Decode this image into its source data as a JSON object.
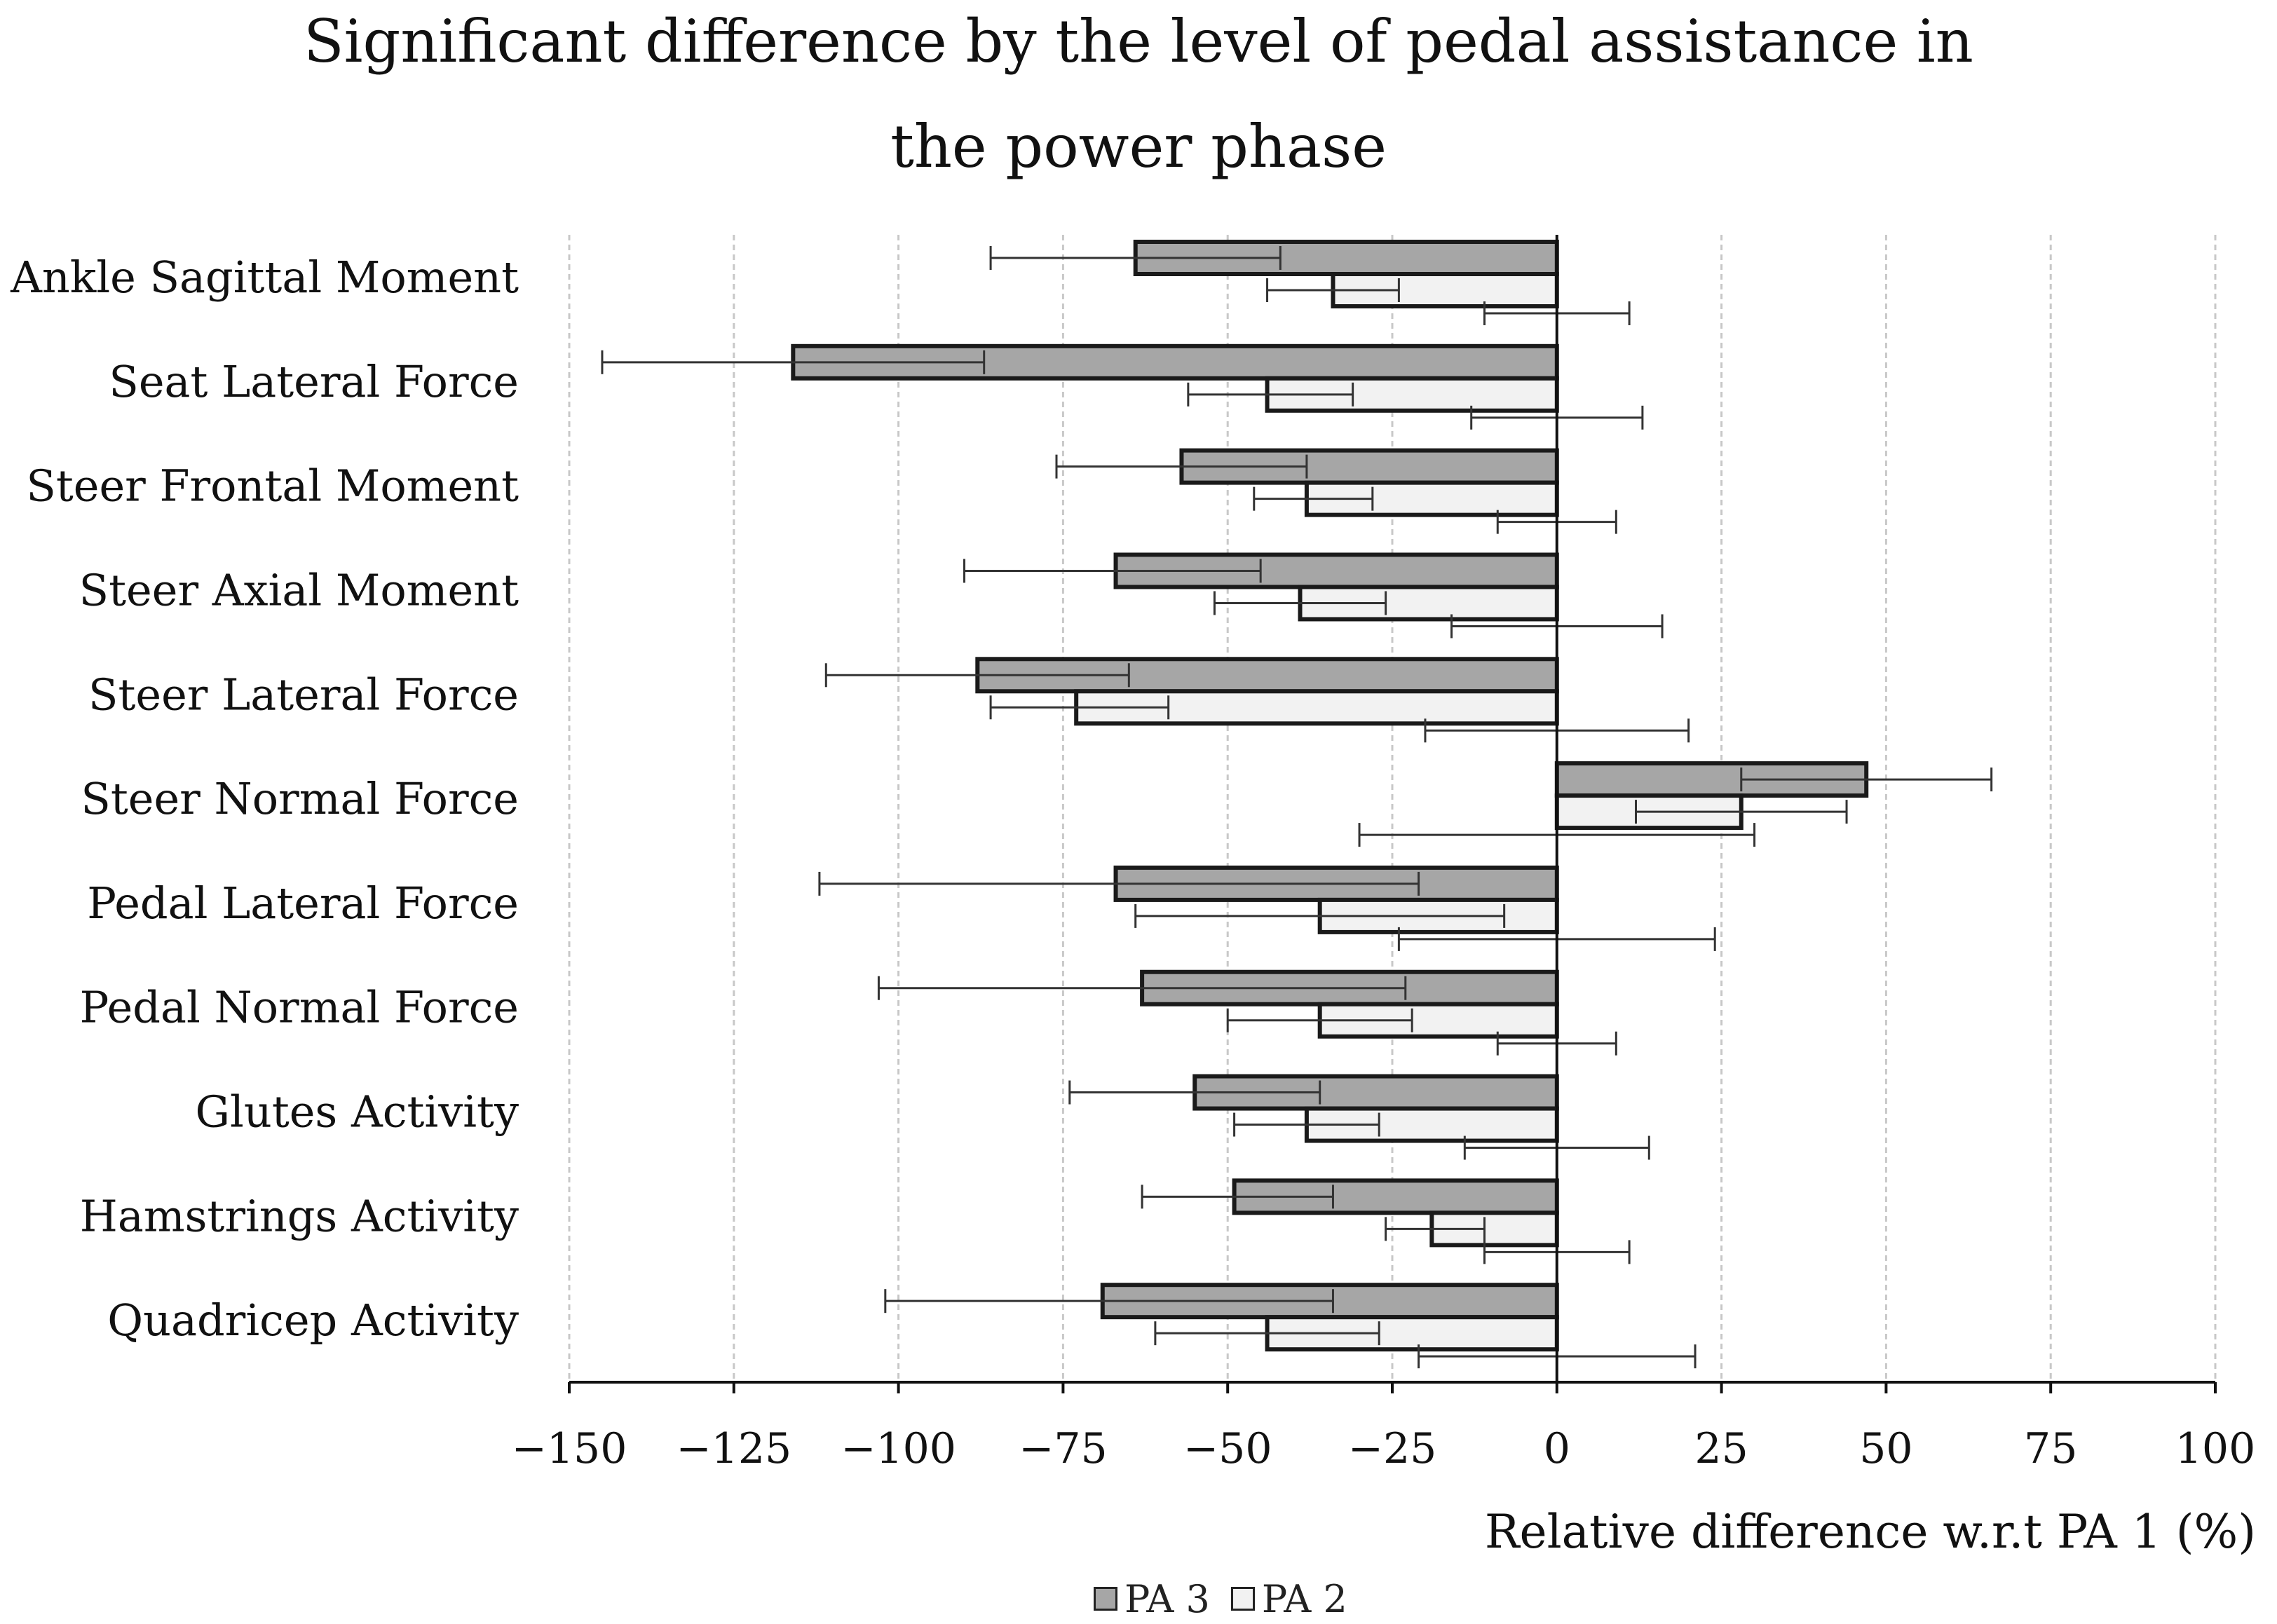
{
  "chart_data": {
    "type": "bar",
    "orientation": "horizontal",
    "title_lines": [
      "Significant difference by the level of pedal assistance in",
      "the power phase"
    ],
    "categories": [
      "Ankle Sagittal Moment",
      "Seat Lateral Force",
      "Steer Frontal Moment",
      "Steer Axial Moment",
      "Steer Lateral Force",
      "Steer Normal Force",
      "Pedal Lateral Force",
      "Pedal Normal Force",
      "Glutes Activity",
      "Hamstrings Activity",
      "Quadricep Activity"
    ],
    "series": [
      {
        "name": "PA 3",
        "color": "#a6a6a6",
        "values": [
          -64,
          -116,
          -57,
          -67,
          -88,
          47,
          -67,
          -63,
          -55,
          -49,
          -69
        ],
        "error_low": [
          -86,
          -145,
          -76,
          -90,
          -111,
          28,
          -112,
          -103,
          -74,
          -63,
          -102
        ],
        "error_high": [
          -42,
          -87,
          -38,
          -45,
          -65,
          66,
          -21,
          -23,
          -36,
          -34,
          -34
        ]
      },
      {
        "name": "PA 2",
        "color": "#f2f2f2",
        "values": [
          -34,
          -44,
          -38,
          -39,
          -73,
          28,
          -36,
          -36,
          -38,
          -19,
          -44
        ],
        "error_low": [
          -44,
          -56,
          -46,
          -52,
          -86,
          12,
          -64,
          -50,
          -49,
          -26,
          -61
        ],
        "error_high": [
          -24,
          -31,
          -28,
          -26,
          -59,
          44,
          -8,
          -22,
          -27,
          -11,
          -27
        ]
      }
    ],
    "extra_error_bars": {
      "low": [
        -11,
        -13,
        -9,
        -16,
        -20,
        -30,
        -24,
        -9,
        -14,
        -11,
        -21
      ],
      "high": [
        11,
        13,
        9,
        16,
        20,
        30,
        24,
        9,
        14,
        11,
        21
      ]
    },
    "xlim": [
      -150,
      100
    ],
    "xticks": [
      -150,
      -125,
      -100,
      -75,
      -50,
      -25,
      0,
      25,
      50,
      75,
      100
    ],
    "xtick_labels": [
      "−150",
      "−125",
      "−100",
      "−75",
      "−50",
      "−25",
      "0",
      "25",
      "50",
      "75",
      "100"
    ],
    "xlabel": "Relative difference w.r.t PA 1 (%)",
    "legend_labels": [
      "PA 3",
      "PA 2"
    ],
    "grid": "vertical dashed",
    "legend_position": "bottom"
  }
}
